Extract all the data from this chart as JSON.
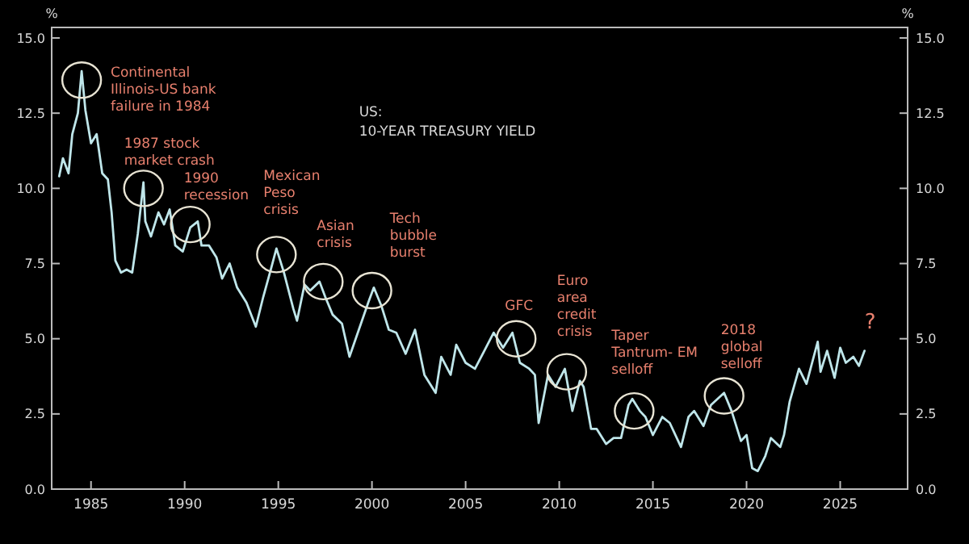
{
  "chart_data": {
    "type": "line",
    "title": "US:",
    "subtitle": "10-YEAR TREASURY YIELD",
    "ylabel": "%",
    "y2label": "%",
    "xlim": [
      1982.9,
      2028.6
    ],
    "xticks": [
      1985,
      1990,
      1995,
      2000,
      2005,
      2010,
      2015,
      2020,
      2025
    ],
    "ylim": [
      0,
      15.35
    ],
    "yticks": [
      {
        "value": 0,
        "label": "0.0"
      },
      {
        "value": 2.5,
        "label": "2.5"
      },
      {
        "value": 5,
        "label": "5.0"
      },
      {
        "value": 7.5,
        "label": "7.5"
      },
      {
        "value": 10,
        "label": "10.0"
      },
      {
        "value": 12.5,
        "label": "12.5"
      },
      {
        "value": 15,
        "label": "15.0"
      }
    ],
    "y2lim": [
      0,
      15.35
    ],
    "y2ticks": [
      {
        "value": 0,
        "label": "0.0"
      },
      {
        "value": 2.5,
        "label": "2.5"
      },
      {
        "value": 5,
        "label": "5.0"
      },
      {
        "value": 7.5,
        "label": "7.5"
      },
      {
        "value": 10,
        "label": "10.0"
      },
      {
        "value": 12.5,
        "label": "12.5"
      },
      {
        "value": 15,
        "label": "15.0"
      }
    ],
    "grid": false,
    "marker": "none",
    "line_style": "solid",
    "x": [
      1983.3,
      1983.5,
      1983.8,
      1984.0,
      1984.3,
      1984.5,
      1984.7,
      1985.0,
      1985.3,
      1985.6,
      1985.9,
      1986.1,
      1986.3,
      1986.6,
      1986.9,
      1987.2,
      1987.5,
      1987.8,
      1987.9,
      1988.2,
      1988.6,
      1988.9,
      1989.2,
      1989.5,
      1989.9,
      1990.3,
      1990.7,
      1990.9,
      1991.3,
      1991.7,
      1992.0,
      1992.4,
      1992.8,
      1993.3,
      1993.8,
      1994.2,
      1994.6,
      1994.9,
      1995.3,
      1995.8,
      1996.0,
      1996.4,
      1996.7,
      1997.2,
      1997.5,
      1997.9,
      1998.4,
      1998.8,
      1999.3,
      1999.8,
      2000.1,
      2000.5,
      2000.9,
      2001.3,
      2001.8,
      2002.3,
      2002.8,
      2003.4,
      2003.7,
      2004.2,
      2004.5,
      2005.0,
      2005.5,
      2006.0,
      2006.5,
      2007.0,
      2007.5,
      2007.9,
      2008.4,
      2008.7,
      2008.9,
      2009.4,
      2009.8,
      2010.3,
      2010.7,
      2011.1,
      2011.3,
      2011.7,
      2012.0,
      2012.5,
      2012.9,
      2013.3,
      2013.7,
      2013.9,
      2014.3,
      2014.6,
      2015.0,
      2015.5,
      2015.9,
      2016.5,
      2016.9,
      2017.2,
      2017.7,
      2018.1,
      2018.8,
      2019.2,
      2019.7,
      2020.0,
      2020.3,
      2020.6,
      2021.0,
      2021.3,
      2021.8,
      2022.0,
      2022.3,
      2022.8,
      2023.2,
      2023.8,
      2023.95,
      2024.3,
      2024.7,
      2025.0,
      2025.3,
      2025.7,
      2026.0,
      2026.3
    ],
    "series": [
      {
        "color": "#bfe6ea",
        "values": [
          10.4,
          11.0,
          10.5,
          11.8,
          12.5,
          13.9,
          12.6,
          11.5,
          11.8,
          10.5,
          10.3,
          9.2,
          7.6,
          7.2,
          7.3,
          7.2,
          8.5,
          10.2,
          8.9,
          8.4,
          9.2,
          8.8,
          9.3,
          8.1,
          7.9,
          8.7,
          8.9,
          8.1,
          8.1,
          7.7,
          7.0,
          7.5,
          6.7,
          6.2,
          5.4,
          6.4,
          7.3,
          8.0,
          7.2,
          6.0,
          5.6,
          6.8,
          6.6,
          6.9,
          6.4,
          5.8,
          5.5,
          4.4,
          5.3,
          6.2,
          6.7,
          6.1,
          5.3,
          5.2,
          4.5,
          5.3,
          3.8,
          3.2,
          4.4,
          3.8,
          4.8,
          4.2,
          4.0,
          4.6,
          5.2,
          4.7,
          5.2,
          4.2,
          4.0,
          3.8,
          2.2,
          3.8,
          3.4,
          4.0,
          2.6,
          3.6,
          3.4,
          2.0,
          2.0,
          1.5,
          1.7,
          1.7,
          2.8,
          3.0,
          2.6,
          2.4,
          1.8,
          2.4,
          2.2,
          1.4,
          2.4,
          2.6,
          2.1,
          2.8,
          3.2,
          2.6,
          1.6,
          1.8,
          0.7,
          0.6,
          1.1,
          1.7,
          1.4,
          1.8,
          2.9,
          4.0,
          3.5,
          4.9,
          3.9,
          4.6,
          3.7,
          4.7,
          4.2,
          4.4,
          4.1,
          4.6
        ]
      }
    ],
    "annotations": [
      {
        "text": "Continental\nIllinois-US bank\nfailure in 1984",
        "x": 1984.5,
        "y": 13.6
      },
      {
        "text": "1987 stock\nmarket crash",
        "x": 1987.8,
        "y": 10.0
      },
      {
        "text": "1990\nrecession",
        "x": 1990.3,
        "y": 8.8
      },
      {
        "text": "Mexican\nPeso\ncrisis",
        "x": 1994.9,
        "y": 7.8
      },
      {
        "text": "Asian\ncrisis",
        "x": 1997.4,
        "y": 6.9
      },
      {
        "text": "Tech\nbubble\nburst",
        "x": 2000.0,
        "y": 6.6
      },
      {
        "text": "GFC",
        "x": 2007.7,
        "y": 5.0
      },
      {
        "text": "Euro\narea\ncredit\ncrisis",
        "x": 2010.4,
        "y": 3.9
      },
      {
        "text": "Taper\nTantrum- EM\nselloff",
        "x": 2014.0,
        "y": 2.6
      },
      {
        "text": "2018\nglobal\nselloff",
        "x": 2018.8,
        "y": 3.1
      },
      "?"
    ]
  }
}
